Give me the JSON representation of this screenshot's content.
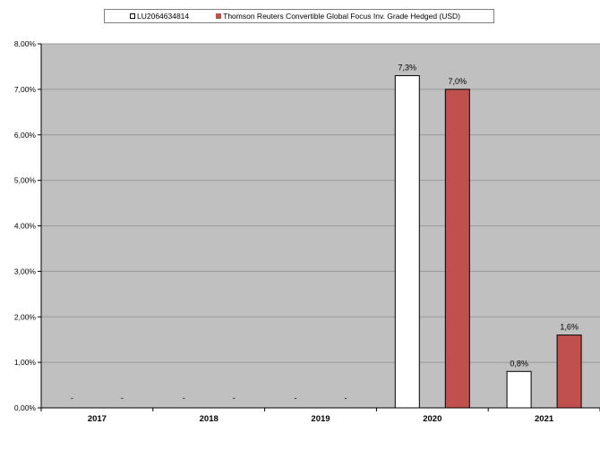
{
  "chart_data": {
    "type": "bar",
    "categories": [
      "2017",
      "2018",
      "2019",
      "2020",
      "2021"
    ],
    "series": [
      {
        "name": "LU2064634814",
        "color": "#ffffff",
        "values": [
          null,
          null,
          null,
          7.3,
          0.8
        ],
        "labels": [
          "-",
          "-",
          "-",
          "7,3%",
          "0,8%"
        ]
      },
      {
        "name": "Thomson Reuters Convertible Global Focus Inv. Grade Hedged (USD)",
        "color": "#c0504d",
        "values": [
          null,
          null,
          null,
          7.0,
          1.6
        ],
        "labels": [
          "-",
          "-",
          "-",
          "7,0%",
          "1,6%"
        ]
      }
    ],
    "ylim": [
      0,
      8
    ],
    "yticks": [
      "0,00%",
      "1,00%",
      "2,00%",
      "3,00%",
      "4,00%",
      "5,00%",
      "6,00%",
      "7,00%",
      "8,00%"
    ],
    "grid": true,
    "plot_background": "#c0c0c0",
    "legend_position": "top"
  }
}
